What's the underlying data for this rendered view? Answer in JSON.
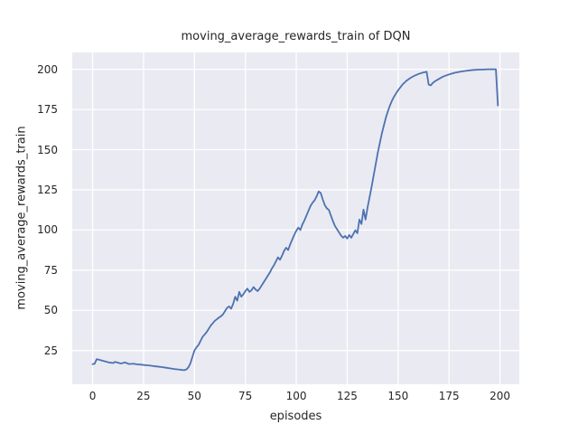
{
  "figure": {
    "background": "#ffffff"
  },
  "chart_data": {
    "type": "line",
    "title": "moving_average_rewards_train of DQN",
    "xlabel": "episodes",
    "ylabel": "moving_average_rewards_train",
    "xlim": [
      -10,
      209.5
    ],
    "ylim": [
      4,
      210.5
    ],
    "xticks": [
      0,
      25,
      50,
      75,
      100,
      125,
      150,
      175,
      200
    ],
    "yticks": [
      25,
      50,
      75,
      100,
      125,
      150,
      175,
      200
    ],
    "grid": true,
    "legend": null,
    "colors": {
      "line": "#4c72b0",
      "axes_background": "#eaeaf2",
      "grid": "#ffffff",
      "text": "#262626"
    },
    "series": [
      {
        "name": "moving_average_rewards_train",
        "points": [
          [
            0,
            16.5
          ],
          [
            1,
            16.8
          ],
          [
            2,
            19.6
          ],
          [
            3,
            19.3
          ],
          [
            4,
            19.0
          ],
          [
            5,
            18.6
          ],
          [
            6,
            18.3
          ],
          [
            7,
            17.9
          ],
          [
            8,
            17.6
          ],
          [
            9,
            17.4
          ],
          [
            10,
            17.2
          ],
          [
            11,
            17.9
          ],
          [
            12,
            17.6
          ],
          [
            13,
            17.2
          ],
          [
            14,
            16.9
          ],
          [
            15,
            17.3
          ],
          [
            16,
            17.6
          ],
          [
            17,
            17.0
          ],
          [
            18,
            16.6
          ],
          [
            20,
            16.8
          ],
          [
            22,
            16.4
          ],
          [
            24,
            16.2
          ],
          [
            25,
            16.0
          ],
          [
            26,
            15.9
          ],
          [
            28,
            15.7
          ],
          [
            30,
            15.3
          ],
          [
            32,
            15.0
          ],
          [
            34,
            14.7
          ],
          [
            36,
            14.3
          ],
          [
            38,
            13.9
          ],
          [
            40,
            13.5
          ],
          [
            42,
            13.2
          ],
          [
            43,
            13.1
          ],
          [
            44,
            12.9
          ],
          [
            45,
            12.8
          ],
          [
            46,
            13.2
          ],
          [
            47,
            14.5
          ],
          [
            48,
            17.0
          ],
          [
            49,
            21.0
          ],
          [
            50,
            25.0
          ],
          [
            51,
            27.0
          ],
          [
            52,
            28.5
          ],
          [
            53,
            31.0
          ],
          [
            54,
            33.5
          ],
          [
            55,
            35.0
          ],
          [
            56,
            36.5
          ],
          [
            57,
            38.5
          ],
          [
            58,
            40.5
          ],
          [
            59,
            42.0
          ],
          [
            60,
            43.5
          ],
          [
            61,
            44.5
          ],
          [
            62,
            45.5
          ],
          [
            63,
            46.3
          ],
          [
            64,
            47.5
          ],
          [
            65,
            49.5
          ],
          [
            66,
            51.5
          ],
          [
            67,
            52.5
          ],
          [
            68,
            51.0
          ],
          [
            69,
            54.0
          ],
          [
            70,
            58.5
          ],
          [
            71,
            56.0
          ],
          [
            72,
            61.5
          ],
          [
            73,
            58.5
          ],
          [
            74,
            60.0
          ],
          [
            75,
            62.0
          ],
          [
            76,
            63.5
          ],
          [
            77,
            61.5
          ],
          [
            78,
            62.5
          ],
          [
            79,
            64.5
          ],
          [
            80,
            63.0
          ],
          [
            81,
            62.0
          ],
          [
            82,
            63.5
          ],
          [
            83,
            65.5
          ],
          [
            84,
            67.5
          ],
          [
            85,
            69.5
          ],
          [
            86,
            71.5
          ],
          [
            87,
            73.5
          ],
          [
            88,
            76.0
          ],
          [
            89,
            78.0
          ],
          [
            90,
            80.5
          ],
          [
            91,
            83.0
          ],
          [
            92,
            81.5
          ],
          [
            93,
            84.0
          ],
          [
            94,
            87.0
          ],
          [
            95,
            89.0
          ],
          [
            96,
            87.5
          ],
          [
            97,
            91.0
          ],
          [
            98,
            94.0
          ],
          [
            99,
            97.0
          ],
          [
            100,
            99.5
          ],
          [
            101,
            101.5
          ],
          [
            102,
            100.0
          ],
          [
            103,
            103.5
          ],
          [
            104,
            106.0
          ],
          [
            105,
            109.0
          ],
          [
            106,
            112.0
          ],
          [
            107,
            115.0
          ],
          [
            108,
            117.0
          ],
          [
            109,
            118.5
          ],
          [
            110,
            121.0
          ],
          [
            111,
            124.0
          ],
          [
            112,
            123.0
          ],
          [
            113,
            119.0
          ],
          [
            114,
            115.5
          ],
          [
            115,
            113.5
          ],
          [
            116,
            112.5
          ],
          [
            117,
            109.0
          ],
          [
            118,
            105.5
          ],
          [
            119,
            102.5
          ],
          [
            120,
            100.5
          ],
          [
            121,
            98.5
          ],
          [
            122,
            96.5
          ],
          [
            123,
            95.2
          ],
          [
            124,
            96.3
          ],
          [
            125,
            94.7
          ],
          [
            126,
            96.9
          ],
          [
            127,
            95.2
          ],
          [
            128,
            97.5
          ],
          [
            129,
            99.8
          ],
          [
            130,
            98.0
          ],
          [
            131,
            106.5
          ],
          [
            132,
            103.7
          ],
          [
            133,
            112.7
          ],
          [
            134,
            106.5
          ],
          [
            135,
            114.0
          ],
          [
            136,
            120.5
          ],
          [
            137,
            127.0
          ],
          [
            138,
            134.0
          ],
          [
            139,
            141.0
          ],
          [
            140,
            148.0
          ],
          [
            141,
            154.0
          ],
          [
            142,
            160.0
          ],
          [
            143,
            165.0
          ],
          [
            144,
            170.0
          ],
          [
            145,
            174.0
          ],
          [
            146,
            177.5
          ],
          [
            147,
            180.5
          ],
          [
            148,
            183.0
          ],
          [
            149,
            185.0
          ],
          [
            150,
            187.0
          ],
          [
            152,
            190.3
          ],
          [
            154,
            192.8
          ],
          [
            156,
            194.6
          ],
          [
            158,
            196.0
          ],
          [
            160,
            197.1
          ],
          [
            162,
            197.9
          ],
          [
            164,
            198.5
          ],
          [
            165,
            190.5
          ],
          [
            166,
            190.0
          ],
          [
            167,
            191.5
          ],
          [
            168,
            192.5
          ],
          [
            170,
            194.0
          ],
          [
            172,
            195.4
          ],
          [
            174,
            196.4
          ],
          [
            176,
            197.2
          ],
          [
            178,
            197.9
          ],
          [
            180,
            198.4
          ],
          [
            182,
            198.8
          ],
          [
            184,
            199.2
          ],
          [
            186,
            199.5
          ],
          [
            188,
            199.7
          ],
          [
            190,
            199.8
          ],
          [
            192,
            199.9
          ],
          [
            194,
            200.0
          ],
          [
            196,
            200.0
          ],
          [
            198,
            200.0
          ],
          [
            199,
            177.5
          ]
        ]
      }
    ]
  }
}
